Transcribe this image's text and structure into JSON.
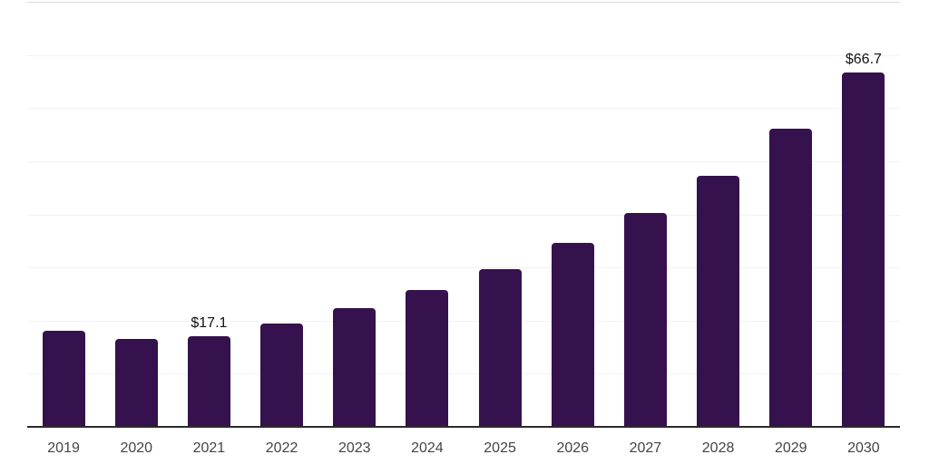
{
  "chart_data": {
    "type": "bar",
    "title": "",
    "xlabel": "",
    "ylabel": "",
    "categories": [
      "2019",
      "2020",
      "2021",
      "2022",
      "2023",
      "2024",
      "2025",
      "2026",
      "2027",
      "2028",
      "2029",
      "2030"
    ],
    "values": [
      18.0,
      16.5,
      17.1,
      19.5,
      22.4,
      25.7,
      29.6,
      34.6,
      40.2,
      47.3,
      56.1,
      66.7
    ],
    "data_labels": {
      "2021": "$17.1",
      "2030": "$66.7"
    },
    "ylim": [
      0,
      80
    ],
    "grid_step": 10,
    "grid": true,
    "legend": false,
    "y_axis_tick_labels_visible": false,
    "colors": {
      "bar": "#35124d",
      "gridline": "#f2f2f2",
      "top_gridline": "#dcdcdc",
      "axis_line": "#2b2b2b",
      "x_tick_label": "#444444",
      "data_label": "#111111",
      "background": "#ffffff"
    }
  }
}
